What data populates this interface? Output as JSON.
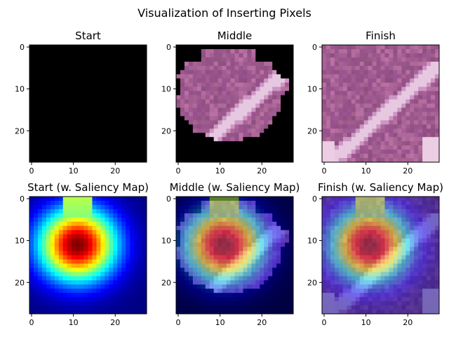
{
  "figure": {
    "title": "Visualization of Inserting Pixels"
  },
  "colors": {
    "background": "#ffffff",
    "axis": "#000000",
    "black": "#000000",
    "tissue_pink": "#b8709c",
    "tissue_purple": "#8a4a80",
    "tissue_light": "#e9c6df"
  },
  "chart_data": [
    {
      "type": "heatmap",
      "title": "Start",
      "content": "black image",
      "image_size": [
        28,
        28
      ],
      "xticks": [
        0,
        10,
        20
      ],
      "yticks": [
        0,
        10,
        20
      ]
    },
    {
      "type": "heatmap",
      "title": "Middle",
      "content": "partially inserted tissue image on black background",
      "image_size": [
        28,
        28
      ],
      "xticks": [
        0,
        10,
        20
      ],
      "yticks": [
        0,
        10,
        20
      ]
    },
    {
      "type": "heatmap",
      "title": "Finish",
      "content": "full tissue image",
      "image_size": [
        28,
        28
      ],
      "xticks": [
        0,
        10,
        20
      ],
      "yticks": [
        0,
        10,
        20
      ]
    },
    {
      "type": "heatmap",
      "title": "Start (w. Saliency Map)",
      "colormap": "jet",
      "peak": [
        11,
        11
      ],
      "image_size": [
        28,
        28
      ],
      "xticks": [
        0,
        10,
        20
      ],
      "yticks": [
        0,
        10,
        20
      ]
    },
    {
      "type": "heatmap",
      "title": "Middle (w. Saliency Map)",
      "colormap": "jet",
      "peak": [
        11,
        11
      ],
      "image_size": [
        28,
        28
      ],
      "xticks": [
        0,
        10,
        20
      ],
      "yticks": [
        0,
        10,
        20
      ]
    },
    {
      "type": "heatmap",
      "title": "Finish (w. Saliency Map)",
      "colormap": "jet",
      "peak": [
        11,
        11
      ],
      "image_size": [
        28,
        28
      ],
      "xticks": [
        0,
        10,
        20
      ],
      "yticks": [
        0,
        10,
        20
      ]
    }
  ]
}
